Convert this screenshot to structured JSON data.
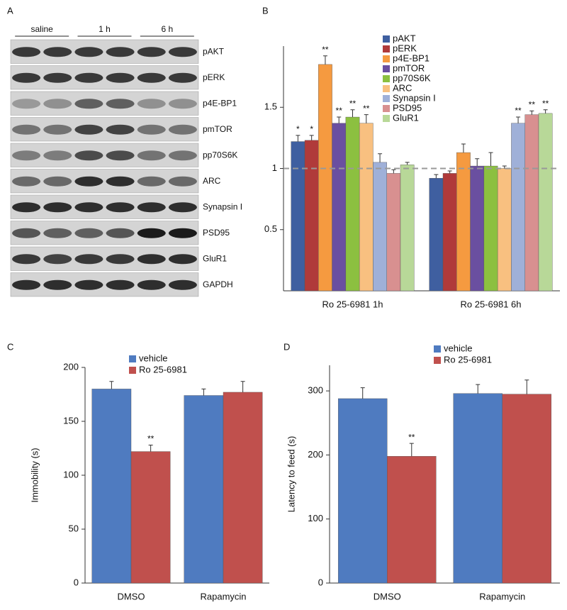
{
  "panels": [
    "A",
    "B",
    "C",
    "D"
  ],
  "blot": {
    "groups": [
      "saline",
      "1 h",
      "6 h"
    ],
    "rows": [
      "pAKT",
      "pERK",
      "p4E-BP1",
      "pmTOR",
      "pp70S6K",
      "ARC",
      "Synapsin I",
      "PSD95",
      "GluR1",
      "GAPDH"
    ]
  },
  "chart_data": [
    {
      "type": "bar",
      "categories": [
        "Ro 25-6981 1h",
        "Ro 25-6981 6h"
      ],
      "ylim": [
        0,
        2
      ],
      "yticks": [
        0.5,
        1,
        1.5
      ],
      "hline": 1,
      "legend": "upper right",
      "series": [
        {
          "name": "pAKT",
          "color": "#3f5fa0",
          "values": [
            1.22,
            0.92
          ],
          "errors": [
            0.05,
            0.03
          ],
          "significance": [
            "*",
            null
          ]
        },
        {
          "name": "pERK",
          "color": "#b03a3a",
          "values": [
            1.23,
            0.96
          ],
          "errors": [
            0.04,
            0.02
          ],
          "significance": [
            "*",
            null
          ]
        },
        {
          "name": "p4E-BP1",
          "color": "#f59a40",
          "values": [
            1.85,
            1.13
          ],
          "errors": [
            0.07,
            0.07
          ],
          "significance": [
            "**",
            null
          ]
        },
        {
          "name": "pmTOR",
          "color": "#6a4fa0",
          "values": [
            1.37,
            1.02
          ],
          "errors": [
            0.05,
            0.06
          ],
          "significance": [
            "**",
            null
          ]
        },
        {
          "name": "pp70S6K",
          "color": "#8cc040",
          "values": [
            1.42,
            1.02
          ],
          "errors": [
            0.06,
            0.11
          ],
          "significance": [
            "**",
            null
          ]
        },
        {
          "name": "ARC",
          "color": "#f8c080",
          "values": [
            1.37,
            1.0
          ],
          "errors": [
            0.07,
            0.02
          ],
          "significance": [
            "**",
            null
          ]
        },
        {
          "name": "Synapsin I",
          "color": "#9fb0d8",
          "values": [
            1.05,
            1.37
          ],
          "errors": [
            0.07,
            0.05
          ],
          "significance": [
            null,
            "**"
          ]
        },
        {
          "name": "PSD95",
          "color": "#d89090",
          "values": [
            0.96,
            1.44
          ],
          "errors": [
            0.03,
            0.03
          ],
          "significance": [
            null,
            "**"
          ]
        },
        {
          "name": "GluR1",
          "color": "#b8d898",
          "values": [
            1.03,
            1.45
          ],
          "errors": [
            0.02,
            0.03
          ],
          "significance": [
            null,
            "**"
          ]
        }
      ]
    },
    {
      "type": "bar",
      "ylabel": "Immobility (s)",
      "categories": [
        "DMSO",
        "Rapamycin"
      ],
      "ylim": [
        0,
        200
      ],
      "yticks": [
        0,
        50,
        100,
        150,
        200
      ],
      "legend": "upper center",
      "series": [
        {
          "name": "vehicle",
          "color": "#4f7bc0",
          "values": [
            180,
            174
          ],
          "errors": [
            7,
            6
          ],
          "significance": [
            null,
            null
          ]
        },
        {
          "name": "Ro 25-6981",
          "color": "#c0504d",
          "values": [
            122,
            177
          ],
          "errors": [
            6,
            10
          ],
          "significance": [
            "**",
            null
          ]
        }
      ]
    },
    {
      "type": "bar",
      "ylabel": "Latency to feed (s)",
      "categories": [
        "DMSO",
        "Rapamycin"
      ],
      "ylim": [
        0,
        340
      ],
      "yticks": [
        0,
        100,
        200,
        300
      ],
      "legend": "upper center",
      "series": [
        {
          "name": "vehicle",
          "color": "#4f7bc0",
          "values": [
            288,
            296
          ],
          "errors": [
            17,
            14
          ],
          "significance": [
            null,
            null
          ]
        },
        {
          "name": "Ro 25-6981",
          "color": "#c0504d",
          "values": [
            198,
            295
          ],
          "errors": [
            20,
            22
          ],
          "significance": [
            "**",
            null
          ]
        }
      ]
    }
  ]
}
